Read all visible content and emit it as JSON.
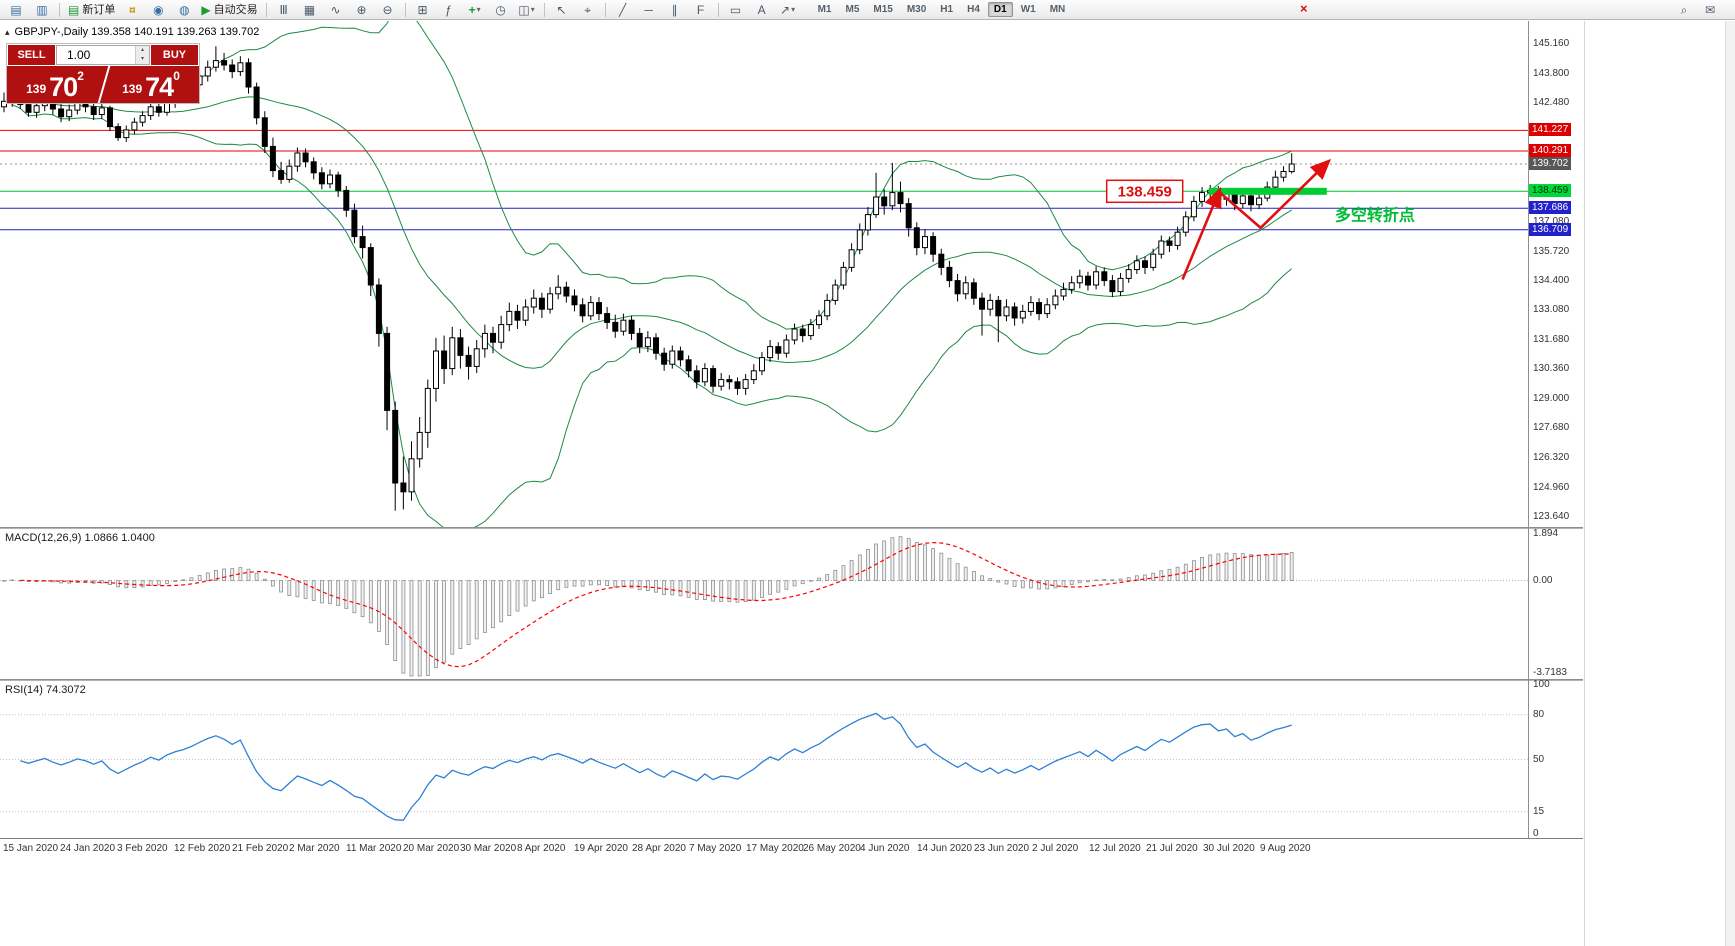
{
  "toolbar": {
    "new_order_label": "新订单",
    "autotrade_label": "自动交易",
    "buttons": [
      {
        "name": "new-chart-icon",
        "glyph": "▤",
        "color": "blue"
      },
      {
        "name": "chart-profiles-icon",
        "glyph": "▥",
        "color": "blue"
      },
      {
        "name": "sep"
      },
      {
        "name": "new-order-button",
        "glyph": "▤",
        "color": "green",
        "label": "新订单"
      },
      {
        "name": "funds-icon",
        "glyph": "¤",
        "color": "gold"
      },
      {
        "name": "community-icon",
        "glyph": "◉",
        "color": "blue"
      },
      {
        "name": "support-icon",
        "glyph": "◍",
        "color": "blue"
      },
      {
        "name": "autotrading-button",
        "glyph": "▶",
        "color": "green",
        "label": "自动交易"
      },
      {
        "name": "sep"
      },
      {
        "name": "bar-chart-icon",
        "glyph": "Ⅲ"
      },
      {
        "name": "candlestick-chart-icon",
        "glyph": "▦"
      },
      {
        "name": "line-chart-icon",
        "glyph": "∿"
      },
      {
        "name": "zoom-in-icon",
        "glyph": "⊕"
      },
      {
        "name": "zoom-out-icon",
        "glyph": "⊖"
      },
      {
        "name": "sep"
      },
      {
        "name": "tile-windows-icon",
        "glyph": "⊞"
      },
      {
        "name": "indicators-icon",
        "glyph": "ƒ"
      },
      {
        "name": "add-indicator-button",
        "glyph": "+",
        "color": "green",
        "extra": "▾"
      },
      {
        "name": "period-icon",
        "glyph": "◷"
      },
      {
        "name": "templates-icon",
        "glyph": "◫",
        "extra": "▾"
      },
      {
        "name": "sep"
      },
      {
        "name": "cursor-icon",
        "glyph": "↖"
      },
      {
        "name": "crosshair-icon",
        "glyph": "⌖"
      },
      {
        "name": "sep"
      },
      {
        "name": "trendline-icon",
        "glyph": "╱"
      },
      {
        "name": "hline-icon",
        "glyph": "─"
      },
      {
        "name": "channel-icon",
        "glyph": "∥"
      },
      {
        "name": "fibonacci-icon",
        "glyph": "F"
      },
      {
        "name": "sep"
      },
      {
        "name": "shapes-icon",
        "glyph": "▭"
      },
      {
        "name": "text-icon",
        "glyph": "A"
      },
      {
        "name": "arrows-icon",
        "glyph": "↗",
        "extra": "▾"
      }
    ],
    "timeframes": [
      "M1",
      "M5",
      "M15",
      "M30",
      "H1",
      "H4",
      "D1",
      "W1",
      "MN"
    ],
    "active_timeframe": "D1",
    "close_glyph": "×",
    "right_icons": [
      {
        "name": "search-icon",
        "glyph": "⌕"
      },
      {
        "name": "mail-icon",
        "glyph": "✉"
      }
    ]
  },
  "chart": {
    "symbol_line": "GBPJPY-,Daily  139.358 140.191 139.263 139.702",
    "collapse_glyph": "▴",
    "trade_panel": {
      "sell_label": "SELL",
      "buy_label": "BUY",
      "volume": "1.00",
      "spin_up": "▴",
      "spin_down": "▾",
      "sell_price": {
        "small": "139",
        "big": "70",
        "sup": "2"
      },
      "buy_price": {
        "small": "139",
        "big": "74",
        "sup": "0"
      }
    },
    "colors": {
      "up_candle": "#ffffff",
      "down_candle": "#000000",
      "candle_border": "#000000",
      "bollinger": "#1d8a45",
      "level_red": "#ee0000",
      "level_blue": "#2222cc",
      "level_green": "#00c435",
      "price_line": "#909090",
      "annotation": "#e01010",
      "pivot": "#00cc33",
      "pivot_text": "#00bb33",
      "macd_signal": "#ff0000",
      "macd_hist_stroke": "#8f8f8f",
      "macd_hist_fill": "#f0f0f0",
      "rsi_line": "#2e7fd6"
    },
    "levels": [
      {
        "value": 141.227,
        "color": "#ee0000",
        "style": "solid",
        "badge": "#dd0000",
        "badge_text": "#ffffff"
      },
      {
        "value": 140.291,
        "color": "#ee0000",
        "style": "solid",
        "badge": "#dd0000",
        "badge_text": "#ffffff"
      },
      {
        "value": 139.702,
        "color": "#909090",
        "style": "dot",
        "badge": "#585858",
        "badge_text": "#ffffff"
      },
      {
        "value": 138.459,
        "color": "#00c435",
        "style": "solid",
        "badge": "#00d93a",
        "badge_text": "#003300"
      },
      {
        "value": 137.686,
        "color": "#2222cc",
        "style": "solid",
        "badge": "#2222cc",
        "badge_text": "#ffffff"
      },
      {
        "value": 136.709,
        "color": "#2222cc",
        "style": "solid",
        "badge": "#2222cc",
        "badge_text": "#ffffff"
      }
    ],
    "y_axis": {
      "ticks": [
        "145.160",
        "143.800",
        "142.480",
        "137.080",
        "135.720",
        "134.400",
        "133.080",
        "131.680",
        "130.360",
        "129.000",
        "127.680",
        "126.320",
        "124.960",
        "123.640"
      ]
    },
    "x_axis": {
      "dates": [
        "15 Jan 2020",
        "24 Jan 2020",
        "3 Feb 2020",
        "12 Feb 2020",
        "21 Feb 2020",
        "2 Mar 2020",
        "11 Mar 2020",
        "20 Mar 2020",
        "30 Mar 2020",
        "8 Apr 2020",
        "19 Apr 2020",
        "28 Apr 2020",
        "7 May 2020",
        "17 May 2020",
        "26 May 2020",
        "4 Jun 2020",
        "14 Jun 2020",
        "23 Jun 2020",
        "2 Jul 2020",
        "12 Jul 2020",
        "21 Jul 2020",
        "30 Jul 2020",
        "9 Aug 2020"
      ]
    },
    "annotations": {
      "price_box": {
        "label": "138.459",
        "index": 135.3,
        "price": 138.459
      },
      "pivot_label": {
        "label": "多空转折点",
        "index": 163.3,
        "price": 137.35
      },
      "pivot_segment": {
        "from_index": 147.8,
        "to_index": 162.3,
        "price": 138.459
      },
      "arrows": [
        [
          [
            144.6,
            134.45
          ],
          [
            149.2,
            138.55
          ]
        ],
        [
          [
            149.2,
            138.4
          ],
          [
            154.2,
            136.8
          ],
          [
            162.6,
            139.85
          ]
        ]
      ]
    }
  },
  "macd": {
    "label": "MACD(12,26,9) 1.0866 1.0400",
    "axis": [
      "1.894",
      "0.00",
      "-3.7183"
    ],
    "scale": {
      "max": 1.96,
      "min": -3.85
    },
    "params": {
      "fast": 12,
      "slow": 26,
      "signal": 9
    }
  },
  "rsi": {
    "label": "RSI(14) 74.3072",
    "axis": [
      "100",
      "80",
      "50",
      "15",
      "0"
    ],
    "levels": [
      80,
      50,
      15
    ],
    "params": {
      "period": 14
    }
  },
  "chart_data": {
    "type": "candlestick",
    "symbol": "GBPJPY",
    "timeframe": "Daily",
    "title": "GBPJPY-,Daily",
    "current_bar": {
      "open": 139.358,
      "high": 140.191,
      "low": 139.263,
      "close": 139.702
    },
    "price_range_shown": [
      123.64,
      145.16
    ],
    "indicators": [
      "Bollinger Bands(20,2)",
      "MACD(12,26,9)",
      "RSI(14)"
    ],
    "ohlc": [
      [
        142.3,
        142.95,
        142.05,
        142.55
      ],
      [
        142.55,
        143.1,
        142.3,
        142.85
      ],
      [
        142.85,
        143.05,
        142.2,
        142.4
      ],
      [
        142.4,
        142.7,
        141.85,
        142.05
      ],
      [
        142.05,
        142.6,
        141.8,
        142.35
      ],
      [
        142.35,
        142.9,
        142.1,
        142.65
      ],
      [
        142.65,
        142.85,
        141.95,
        142.2
      ],
      [
        142.2,
        142.45,
        141.6,
        141.85
      ],
      [
        141.85,
        142.4,
        141.65,
        142.15
      ],
      [
        142.15,
        142.75,
        141.95,
        142.5
      ],
      [
        142.5,
        142.8,
        142.05,
        142.3
      ],
      [
        142.3,
        142.55,
        141.7,
        141.95
      ],
      [
        141.95,
        142.45,
        141.75,
        142.25
      ],
      [
        142.25,
        142.35,
        141.2,
        141.4
      ],
      [
        141.4,
        141.55,
        140.75,
        140.9
      ],
      [
        140.9,
        141.45,
        140.7,
        141.25
      ],
      [
        141.25,
        141.8,
        141.05,
        141.6
      ],
      [
        141.6,
        142.1,
        141.4,
        141.9
      ],
      [
        141.9,
        142.5,
        141.7,
        142.3
      ],
      [
        142.3,
        142.55,
        141.85,
        142.05
      ],
      [
        142.05,
        142.75,
        141.9,
        142.5
      ],
      [
        142.5,
        143.0,
        142.25,
        142.8
      ],
      [
        142.8,
        143.25,
        142.55,
        143.0
      ],
      [
        143.0,
        143.5,
        142.7,
        143.3
      ],
      [
        143.3,
        143.95,
        143.1,
        143.7
      ],
      [
        143.7,
        144.4,
        143.45,
        144.1
      ],
      [
        144.1,
        145.05,
        143.9,
        144.4
      ],
      [
        144.4,
        144.75,
        143.95,
        144.2
      ],
      [
        144.2,
        144.45,
        143.6,
        143.9
      ],
      [
        143.9,
        144.6,
        143.7,
        144.3
      ],
      [
        144.3,
        144.5,
        142.9,
        143.2
      ],
      [
        143.2,
        143.4,
        141.5,
        141.8
      ],
      [
        141.8,
        142.1,
        140.2,
        140.5
      ],
      [
        140.5,
        140.9,
        139.1,
        139.4
      ],
      [
        139.4,
        139.8,
        138.8,
        139.0
      ],
      [
        139.0,
        139.9,
        138.85,
        139.6
      ],
      [
        139.6,
        140.45,
        139.35,
        140.2
      ],
      [
        140.2,
        140.4,
        139.55,
        139.8
      ],
      [
        139.8,
        140.0,
        139.0,
        139.3
      ],
      [
        139.3,
        139.55,
        138.55,
        138.8
      ],
      [
        138.8,
        139.45,
        138.6,
        139.2
      ],
      [
        139.2,
        139.35,
        138.2,
        138.5
      ],
      [
        138.5,
        138.7,
        137.3,
        137.6
      ],
      [
        137.6,
        137.9,
        136.1,
        136.4
      ],
      [
        136.4,
        136.9,
        135.4,
        135.9
      ],
      [
        135.9,
        136.1,
        133.7,
        134.2
      ],
      [
        134.2,
        134.5,
        131.4,
        132.0
      ],
      [
        132.0,
        132.3,
        127.6,
        128.5
      ],
      [
        128.5,
        128.9,
        123.94,
        125.2
      ],
      [
        125.2,
        126.4,
        124.0,
        124.8
      ],
      [
        124.8,
        127.1,
        124.4,
        126.3
      ],
      [
        126.3,
        128.2,
        125.9,
        127.5
      ],
      [
        127.5,
        129.9,
        126.8,
        129.5
      ],
      [
        129.5,
        131.8,
        128.9,
        131.2
      ],
      [
        131.2,
        131.9,
        129.7,
        130.4
      ],
      [
        130.4,
        132.3,
        130.1,
        131.8
      ],
      [
        131.8,
        132.2,
        130.4,
        131.0
      ],
      [
        131.0,
        131.4,
        129.9,
        130.5
      ],
      [
        130.5,
        131.7,
        130.2,
        131.3
      ],
      [
        131.3,
        132.4,
        130.9,
        132.0
      ],
      [
        132.0,
        132.3,
        131.1,
        131.6
      ],
      [
        131.6,
        132.8,
        131.3,
        132.4
      ],
      [
        132.4,
        133.4,
        132.1,
        133.0
      ],
      [
        133.0,
        133.3,
        132.2,
        132.6
      ],
      [
        132.6,
        133.55,
        132.35,
        133.2
      ],
      [
        133.2,
        134.0,
        132.9,
        133.6
      ],
      [
        133.6,
        133.85,
        132.7,
        133.1
      ],
      [
        133.1,
        134.1,
        132.9,
        133.8
      ],
      [
        133.8,
        134.65,
        133.55,
        134.1
      ],
      [
        134.1,
        134.35,
        133.4,
        133.7
      ],
      [
        133.7,
        134.0,
        133.0,
        133.3
      ],
      [
        133.3,
        133.6,
        132.5,
        132.8
      ],
      [
        132.8,
        133.7,
        132.6,
        133.4
      ],
      [
        133.4,
        133.65,
        132.6,
        132.9
      ],
      [
        132.9,
        133.2,
        132.2,
        132.5
      ],
      [
        132.5,
        132.85,
        131.8,
        132.1
      ],
      [
        132.1,
        132.9,
        131.9,
        132.6
      ],
      [
        132.6,
        132.8,
        131.7,
        132.0
      ],
      [
        132.0,
        132.25,
        131.1,
        131.4
      ],
      [
        131.4,
        132.1,
        131.15,
        131.8
      ],
      [
        131.8,
        132.0,
        130.8,
        131.1
      ],
      [
        131.1,
        131.35,
        130.3,
        130.6
      ],
      [
        130.6,
        131.45,
        130.4,
        131.2
      ],
      [
        131.2,
        131.4,
        130.5,
        130.8
      ],
      [
        130.8,
        131.0,
        130.0,
        130.3
      ],
      [
        130.3,
        130.55,
        129.5,
        129.8
      ],
      [
        129.8,
        130.65,
        129.6,
        130.4
      ],
      [
        130.4,
        130.55,
        129.3,
        129.6
      ],
      [
        129.6,
        130.2,
        129.4,
        129.9
      ],
      [
        129.9,
        130.1,
        129.45,
        129.8
      ],
      [
        129.8,
        130.0,
        129.2,
        129.5
      ],
      [
        129.5,
        130.15,
        129.2,
        129.9
      ],
      [
        129.9,
        130.6,
        129.7,
        130.3
      ],
      [
        130.3,
        131.15,
        130.1,
        130.9
      ],
      [
        130.9,
        131.7,
        130.7,
        131.4
      ],
      [
        131.4,
        131.6,
        130.8,
        131.1
      ],
      [
        131.1,
        131.95,
        130.9,
        131.7
      ],
      [
        131.7,
        132.45,
        131.5,
        132.2
      ],
      [
        132.2,
        132.4,
        131.6,
        131.9
      ],
      [
        131.9,
        132.65,
        131.7,
        132.4
      ],
      [
        132.4,
        133.05,
        132.2,
        132.8
      ],
      [
        132.8,
        133.8,
        132.6,
        133.5
      ],
      [
        133.5,
        134.45,
        133.3,
        134.2
      ],
      [
        134.2,
        135.25,
        134.0,
        135.0
      ],
      [
        135.0,
        136.1,
        134.8,
        135.8
      ],
      [
        135.8,
        137.0,
        135.6,
        136.7
      ],
      [
        136.7,
        137.75,
        136.45,
        137.4
      ],
      [
        137.4,
        139.3,
        137.25,
        138.2
      ],
      [
        138.2,
        138.55,
        137.4,
        137.8
      ],
      [
        137.8,
        139.75,
        137.6,
        138.4
      ],
      [
        138.4,
        138.9,
        137.5,
        137.9
      ],
      [
        137.9,
        138.15,
        136.4,
        136.8
      ],
      [
        136.8,
        137.05,
        135.55,
        135.9
      ],
      [
        135.9,
        136.75,
        135.6,
        136.4
      ],
      [
        136.4,
        136.6,
        135.25,
        135.6
      ],
      [
        135.6,
        135.85,
        134.65,
        135.0
      ],
      [
        135.0,
        135.3,
        134.1,
        134.4
      ],
      [
        134.4,
        134.7,
        133.45,
        133.8
      ],
      [
        133.8,
        134.6,
        133.55,
        134.3
      ],
      [
        134.3,
        134.5,
        133.3,
        133.6
      ],
      [
        133.6,
        133.85,
        131.9,
        133.1
      ],
      [
        133.1,
        133.8,
        132.8,
        133.5
      ],
      [
        133.5,
        133.7,
        131.6,
        132.8
      ],
      [
        132.8,
        133.55,
        132.55,
        133.2
      ],
      [
        133.2,
        133.4,
        132.35,
        132.7
      ],
      [
        132.7,
        133.3,
        132.45,
        133.0
      ],
      [
        133.0,
        133.7,
        132.8,
        133.4
      ],
      [
        133.4,
        133.6,
        132.6,
        132.9
      ],
      [
        132.9,
        133.6,
        132.7,
        133.3
      ],
      [
        133.3,
        134.0,
        133.1,
        133.7
      ],
      [
        133.7,
        134.3,
        133.5,
        134.0
      ],
      [
        134.0,
        134.6,
        133.8,
        134.3
      ],
      [
        134.3,
        134.9,
        134.05,
        134.6
      ],
      [
        134.6,
        134.8,
        133.95,
        134.2
      ],
      [
        134.2,
        135.05,
        134.0,
        134.8
      ],
      [
        134.8,
        135.0,
        134.15,
        134.4
      ],
      [
        134.4,
        134.65,
        133.65,
        133.9
      ],
      [
        133.9,
        134.75,
        133.7,
        134.5
      ],
      [
        134.5,
        135.15,
        134.3,
        134.9
      ],
      [
        134.9,
        135.55,
        134.7,
        135.3
      ],
      [
        135.3,
        135.5,
        134.7,
        135.0
      ],
      [
        135.0,
        135.85,
        134.85,
        135.6
      ],
      [
        135.6,
        136.45,
        135.4,
        136.2
      ],
      [
        136.2,
        136.4,
        135.7,
        136.0
      ],
      [
        136.0,
        136.85,
        135.8,
        136.6
      ],
      [
        136.6,
        137.55,
        136.4,
        137.3
      ],
      [
        137.3,
        138.25,
        137.1,
        138.0
      ],
      [
        138.0,
        138.65,
        137.75,
        138.4
      ],
      [
        138.4,
        138.75,
        137.95,
        138.5
      ],
      [
        138.5,
        138.7,
        137.85,
        138.1
      ],
      [
        138.1,
        138.6,
        137.8,
        138.35
      ],
      [
        138.35,
        138.55,
        137.6,
        137.9
      ],
      [
        137.9,
        138.45,
        137.7,
        138.25
      ],
      [
        138.25,
        138.4,
        137.55,
        137.85
      ],
      [
        137.85,
        138.5,
        137.65,
        138.15
      ],
      [
        138.15,
        138.9,
        138.0,
        138.65
      ],
      [
        138.65,
        139.4,
        138.45,
        139.1
      ],
      [
        139.1,
        139.6,
        138.9,
        139.36
      ],
      [
        139.358,
        140.191,
        139.263,
        139.702
      ]
    ]
  }
}
